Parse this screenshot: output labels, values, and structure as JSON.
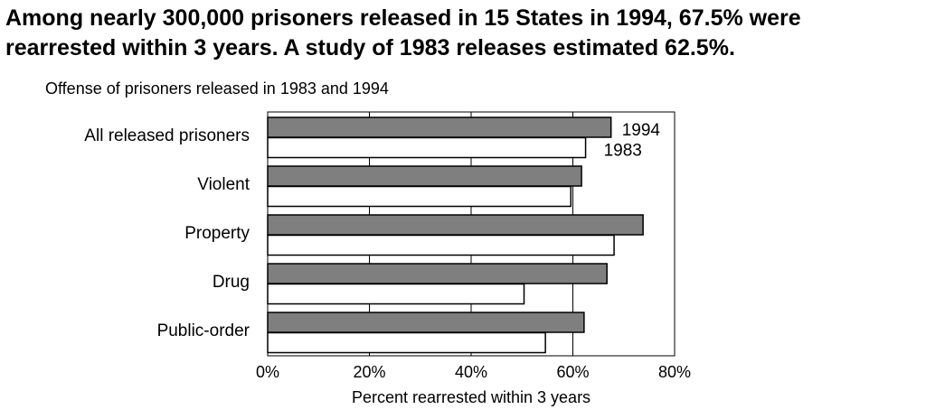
{
  "headline": {
    "line1": "Among nearly 300,000 prisoners released in 15 States in 1994, 67.5% were",
    "line2": "rearrested within 3 years.  A study of 1983 releases estimated 62.5%."
  },
  "chart_data": {
    "type": "bar",
    "orientation": "horizontal",
    "title": "Offense of prisoners released in 1983 and 1994",
    "categories": [
      "All released prisoners",
      "Violent",
      "Property",
      "Drug",
      "Public-order"
    ],
    "series": [
      {
        "name": "1994",
        "values": [
          67.5,
          61.7,
          73.8,
          66.7,
          62.2
        ],
        "color": "#7f7f7f"
      },
      {
        "name": "1983",
        "values": [
          62.5,
          59.6,
          68.1,
          50.4,
          54.6
        ],
        "color": "#ffffff"
      }
    ],
    "xlabel": "Percent rearrested within 3 years",
    "ylabel": "",
    "xlim": [
      0,
      80
    ],
    "ticks": [
      "0%",
      "20%",
      "40%",
      "60%",
      "80%"
    ],
    "grid": true
  }
}
